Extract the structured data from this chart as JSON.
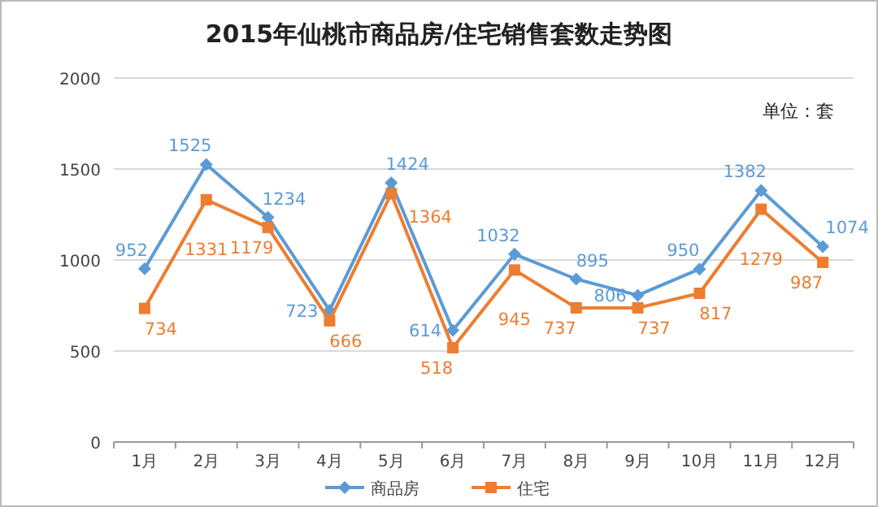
{
  "chart_data": {
    "type": "line",
    "title": "2015年仙桃市商品房/住宅销售套数走势图",
    "annotations": [
      "单位：套"
    ],
    "categories": [
      "1月",
      "2月",
      "3月",
      "4月",
      "5月",
      "6月",
      "7月",
      "8月",
      "9月",
      "10月",
      "11月",
      "12月"
    ],
    "series": [
      {
        "name": "商品房",
        "color": "#5b9bd5",
        "marker": "diamond",
        "values": [
          952,
          1525,
          1234,
          723,
          1424,
          614,
          1032,
          895,
          806,
          950,
          1382,
          1074
        ]
      },
      {
        "name": "住宅",
        "color": "#ed7d31",
        "marker": "square",
        "values": [
          734,
          1331,
          1179,
          666,
          1364,
          518,
          945,
          737,
          737,
          817,
          1279,
          987
        ]
      }
    ],
    "ylim": [
      0,
      2000
    ],
    "yticks": [
      0,
      500,
      1000,
      1500,
      2000
    ],
    "grid": "y",
    "legend": "bottom",
    "data_labels": true
  }
}
